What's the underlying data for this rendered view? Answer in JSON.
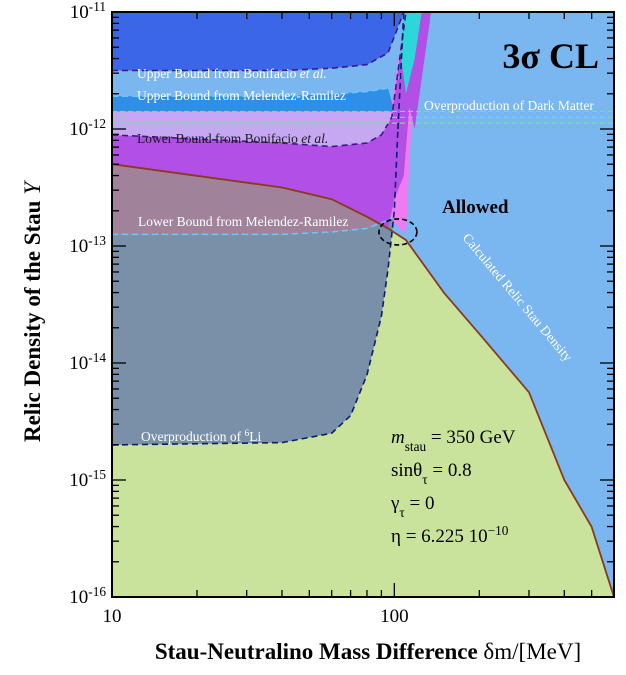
{
  "chart_data": {
    "type": "area",
    "xlabel": "Stau-Neutralino Mass Difference",
    "xlabel_symbol": "δm/[MeV]",
    "ylabel": "Relic Density of the Stau",
    "ylabel_symbol": "Y",
    "x_scale": "log",
    "y_scale": "log",
    "xlim": [
      10,
      600
    ],
    "ylim": [
      1e-16,
      1e-11
    ],
    "x_ticks": [
      {
        "v": 10,
        "label": "10"
      },
      {
        "v": 100,
        "label": "100"
      }
    ],
    "y_ticks": [
      {
        "v": -11,
        "base": "10",
        "exp": "-11"
      },
      {
        "v": -12,
        "base": "10",
        "exp": "-12"
      },
      {
        "v": -13,
        "base": "10",
        "exp": "-13"
      },
      {
        "v": -14,
        "base": "10",
        "exp": "-14"
      },
      {
        "v": -15,
        "base": "10",
        "exp": "-15"
      },
      {
        "v": -16,
        "base": "10",
        "exp": "-16"
      }
    ],
    "grid": false,
    "legend": "none",
    "confidence_label": "3σ CL",
    "allowed_label": "Allowed",
    "colors": {
      "upper_bonifacio": "#3b66e8",
      "upper_melendez": "#2f8fe6",
      "dark_matter": "#7ab6f0",
      "lower_bonifacio": "#b24fe6",
      "lower_bonifacio_light": "#c6a8f2",
      "melendez_magenta": "#f07af2",
      "lower_melendez": "#a0839a",
      "li6": "#7a90a8",
      "allowed": "#c9e39c",
      "relic_curve": "#8b3a1a",
      "allowed_circle": "#000000"
    },
    "relic_curve": {
      "name": "Calculated Relic Stau Density",
      "x": [
        10,
        20,
        40,
        60,
        80,
        95,
        110,
        150,
        200,
        300,
        400,
        500,
        600
      ],
      "y": [
        -12.3,
        -12.4,
        -12.5,
        -12.6,
        -12.75,
        -12.85,
        -12.95,
        -13.4,
        -13.75,
        -14.25,
        -15.0,
        -15.4,
        -16.0
      ]
    },
    "boundaries": [
      {
        "name": "Upper Bound from Bonifacio et al.",
        "x": [
          10,
          40,
          60,
          80,
          95,
          108
        ],
        "y": [
          -11.5,
          -11.5,
          -11.48,
          -11.45,
          -11.35,
          -11.0
        ]
      },
      {
        "name": "Upper Bound from Melendez-Ramilez",
        "x": [
          10,
          40,
          60,
          80,
          95,
          110
        ],
        "y": [
          -11.72,
          -11.72,
          -11.7,
          -11.68,
          -11.65,
          -11.5
        ]
      },
      {
        "name": "Lower Bound from Bonifacio et al.",
        "x": [
          10,
          40,
          60,
          80,
          90,
          98,
          110
        ],
        "y": [
          -12.05,
          -12.12,
          -12.15,
          -12.12,
          -12.05,
          -11.9,
          -11.0
        ]
      },
      {
        "name": "Lower Bound from Melendez-Ramilez",
        "x": [
          10,
          40,
          60,
          80,
          90,
          95,
          100
        ],
        "y": [
          -12.9,
          -12.9,
          -12.88,
          -12.85,
          -12.8,
          -12.78,
          -12.75
        ]
      },
      {
        "name": "Overproduction of 6Li",
        "x": [
          10,
          40,
          60,
          70,
          80,
          90,
          95,
          100,
          103
        ],
        "y": [
          -14.7,
          -14.68,
          -14.6,
          -14.45,
          -14.1,
          -13.6,
          -13.2,
          -12.7,
          -12.0
        ]
      }
    ],
    "annotations": {
      "upper_bonifacio": "Upper Bound from Bonifacio et al.",
      "upper_bonifacio_main": "Upper Bound from Bonifacio ",
      "upper_bonifacio_italic": "et al.",
      "upper_melendez": "Upper Bound from Melendez-Ramilez",
      "dark_matter": "Overproduction of Dark Matter",
      "lower_bonifacio_main": "Lower Bound from Bonifacio ",
      "lower_bonifacio_italic": "et al.",
      "lower_melendez": "Lower Bound from Melendez-Ramilez",
      "li6_main": "Overproduction of ",
      "li6_sup": "6",
      "li6_tail": "Li",
      "relic": "Calculated Relic Stau Density"
    },
    "parameters": [
      {
        "symbol": "m",
        "sub": "stau",
        "rest": " = 350 GeV"
      },
      {
        "symbol": "sinθ",
        "sub": "τ",
        "rest": " = 0.8"
      },
      {
        "symbol": "γ",
        "sub": "τ",
        "rest": " = 0"
      },
      {
        "symbol": "η",
        "sub": "",
        "rest": " = 6.225 10",
        "sup": "−10"
      }
    ]
  }
}
